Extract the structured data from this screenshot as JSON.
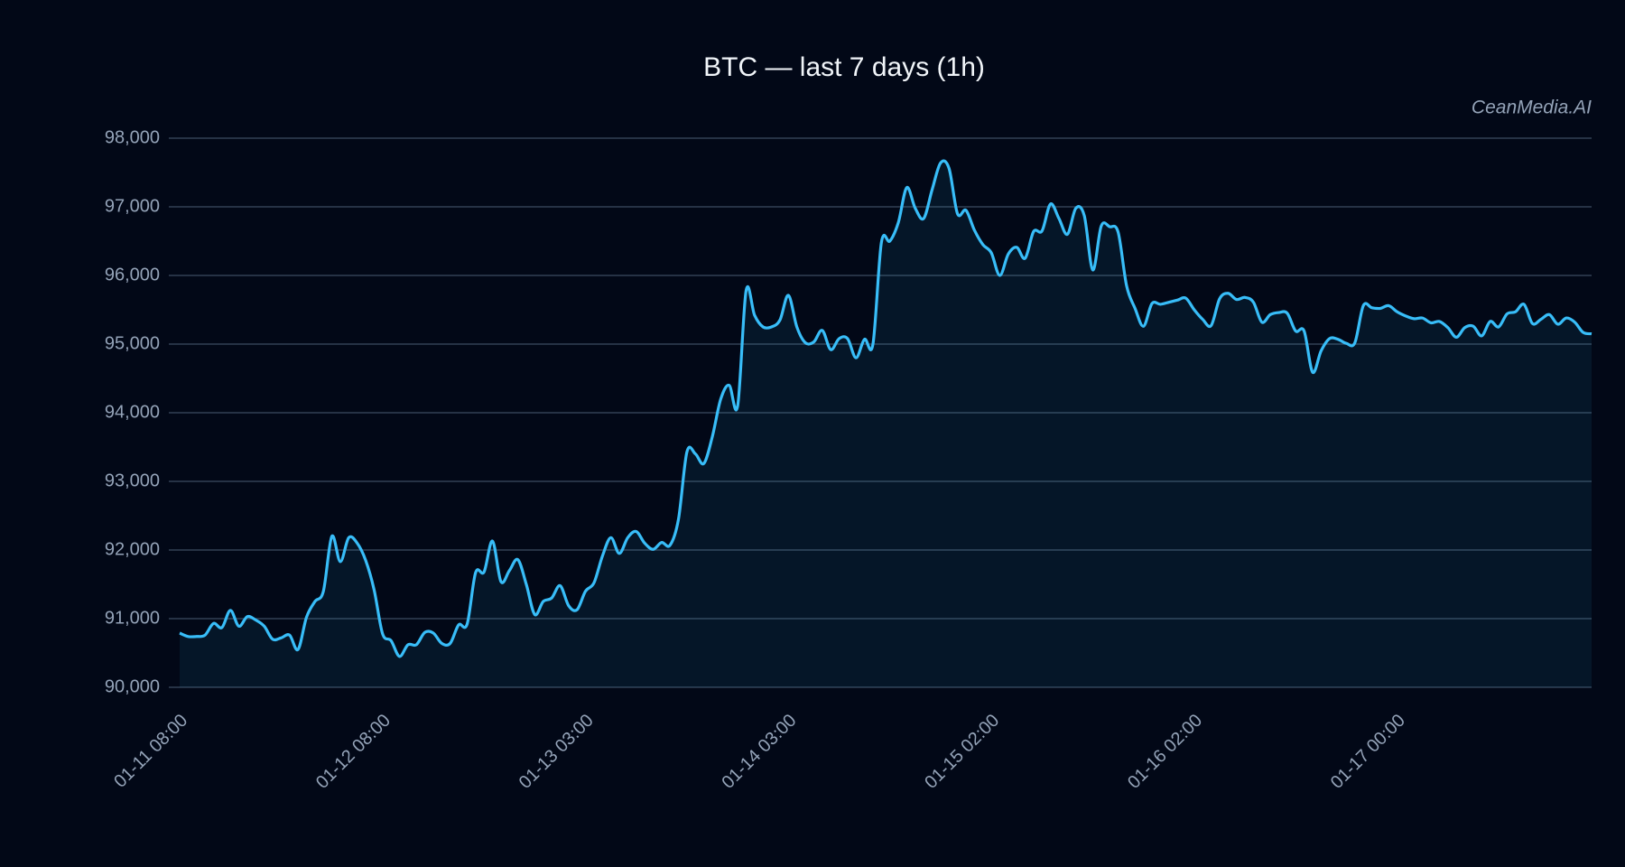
{
  "chart_data": {
    "type": "line",
    "title": "BTC — last 7 days (1h)",
    "watermark": "CeanMedia.AI",
    "categories": [
      "01-11 08:00",
      null,
      null,
      null,
      null,
      null,
      null,
      null,
      null,
      null,
      null,
      null,
      null,
      null,
      null,
      null,
      null,
      null,
      null,
      null,
      null,
      null,
      null,
      null,
      "01-12 08:00",
      null,
      null,
      null,
      null,
      null,
      null,
      null,
      null,
      null,
      null,
      null,
      null,
      null,
      null,
      null,
      null,
      null,
      null,
      null,
      null,
      null,
      null,
      null,
      "01-13 03:00",
      null,
      null,
      null,
      null,
      null,
      null,
      null,
      null,
      null,
      null,
      null,
      null,
      null,
      null,
      null,
      null,
      null,
      null,
      null,
      null,
      null,
      null,
      null,
      "01-14 03:00",
      null,
      null,
      null,
      null,
      null,
      null,
      null,
      null,
      null,
      null,
      null,
      null,
      null,
      null,
      null,
      null,
      null,
      null,
      null,
      null,
      null,
      null,
      null,
      "01-15 02:00",
      null,
      null,
      null,
      null,
      null,
      null,
      null,
      null,
      null,
      null,
      null,
      null,
      null,
      null,
      null,
      null,
      null,
      null,
      null,
      null,
      null,
      null,
      null,
      "01-16 02:00",
      null,
      null,
      null,
      null,
      null,
      null,
      null,
      null,
      null,
      null,
      null,
      null,
      null,
      null,
      null,
      null,
      null,
      null,
      null,
      null,
      null,
      null,
      null,
      "01-17 00:00",
      null,
      null,
      null,
      null,
      null,
      null,
      null,
      null,
      null,
      null,
      null,
      null,
      null,
      null,
      null,
      null,
      null,
      null,
      null,
      null,
      null,
      null,
      null
    ],
    "series": [
      {
        "name": "BTC",
        "color": "#38bdf8",
        "values": [
          90790,
          90740,
          90740,
          90760,
          90930,
          90870,
          91120,
          90890,
          91030,
          90980,
          90890,
          90700,
          90720,
          90760,
          90550,
          91020,
          91250,
          91400,
          92200,
          91830,
          92180,
          92100,
          91850,
          91420,
          90780,
          90680,
          90450,
          90620,
          90620,
          90800,
          90790,
          90640,
          90640,
          90910,
          90920,
          91670,
          91680,
          92130,
          91540,
          91700,
          91860,
          91500,
          91060,
          91250,
          91300,
          91480,
          91190,
          91130,
          91400,
          91520,
          91910,
          92180,
          91950,
          92180,
          92270,
          92100,
          92010,
          92110,
          92070,
          92450,
          93430,
          93400,
          93260,
          93650,
          94200,
          94400,
          94100,
          95780,
          95420,
          95250,
          95250,
          95350,
          95710,
          95250,
          95020,
          95030,
          95200,
          94920,
          95080,
          95080,
          94800,
          95070,
          95000,
          96480,
          96500,
          96770,
          97280,
          96980,
          96830,
          97250,
          97640,
          97560,
          96900,
          96950,
          96660,
          96450,
          96330,
          96000,
          96310,
          96410,
          96250,
          96640,
          96650,
          97040,
          96830,
          96600,
          96980,
          96870,
          96080,
          96720,
          96710,
          96630,
          95850,
          95520,
          95260,
          95590,
          95580,
          95610,
          95640,
          95670,
          95500,
          95360,
          95270,
          95660,
          95740,
          95650,
          95680,
          95610,
          95320,
          95430,
          95460,
          95450,
          95190,
          95190,
          94590,
          94900,
          95080,
          95070,
          95010,
          95020,
          95560,
          95530,
          95520,
          95560,
          95470,
          95410,
          95370,
          95380,
          95310,
          95330,
          95240,
          95100,
          95240,
          95260,
          95120,
          95330,
          95250,
          95440,
          95470,
          95580,
          95300,
          95360,
          95430,
          95290,
          95380,
          95320,
          95170,
          95150
        ]
      }
    ],
    "ylim": [
      90000,
      98000
    ],
    "yticks": [
      {
        "value": 90000,
        "label": "90,000"
      },
      {
        "value": 91000,
        "label": "91,000"
      },
      {
        "value": 92000,
        "label": "92,000"
      },
      {
        "value": 93000,
        "label": "93,000"
      },
      {
        "value": 94000,
        "label": "94,000"
      },
      {
        "value": 95000,
        "label": "95,000"
      },
      {
        "value": 96000,
        "label": "96,000"
      },
      {
        "value": 97000,
        "label": "97,000"
      },
      {
        "value": 98000,
        "label": "98,000"
      }
    ],
    "grid": true
  }
}
